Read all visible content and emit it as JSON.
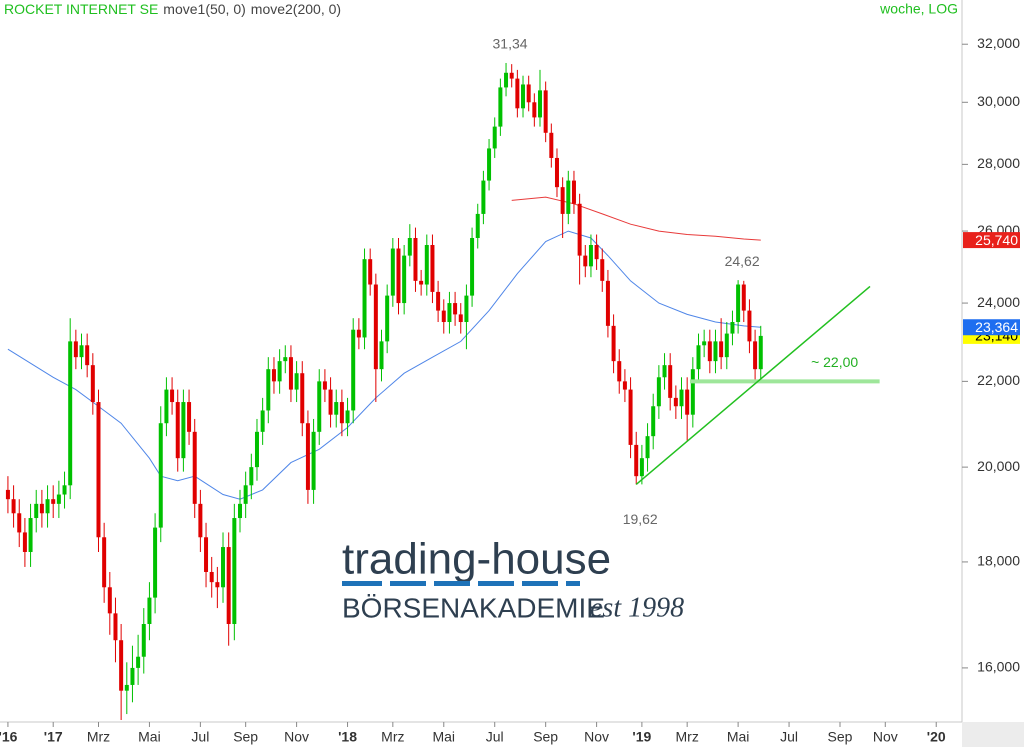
{
  "chart_data": {
    "type": "candlestick",
    "title": "ROCKET INTERNET SE",
    "subtitle": "woche, LOG",
    "log_scale": true,
    "up_color": "#00c000",
    "down_color": "#e00000",
    "xlim": [
      -1.4,
      168.2
    ],
    "xticks": [
      {
        "value": 0,
        "label": "'16"
      },
      {
        "value": 8,
        "label": "'17"
      },
      {
        "value": 16,
        "label": "Mrz"
      },
      {
        "value": 25,
        "label": "Mai"
      },
      {
        "value": 34,
        "label": "Jul"
      },
      {
        "value": 42,
        "label": "Sep"
      },
      {
        "value": 51,
        "label": "Nov"
      },
      {
        "value": 60,
        "label": "'18"
      },
      {
        "value": 68,
        "label": "Mrz"
      },
      {
        "value": 77,
        "label": "Mai"
      },
      {
        "value": 86,
        "label": "Jul"
      },
      {
        "value": 95,
        "label": "Sep"
      },
      {
        "value": 104,
        "label": "Nov"
      },
      {
        "value": 112,
        "label": "'19"
      },
      {
        "value": 120,
        "label": "Mrz"
      },
      {
        "value": 129,
        "label": "Mai"
      },
      {
        "value": 138,
        "label": "Jul"
      },
      {
        "value": 147,
        "label": "Sep"
      },
      {
        "value": 155,
        "label": "Nov"
      },
      {
        "value": 164,
        "label": "'20"
      }
    ],
    "ylim": [
      15.1,
      32.8
    ],
    "yticks": [
      {
        "value": 16,
        "label": "16,000"
      },
      {
        "value": 18,
        "label": "18,000"
      },
      {
        "value": 20,
        "label": "20,000"
      },
      {
        "value": 22,
        "label": "22,000"
      },
      {
        "value": 24,
        "label": "24,000"
      },
      {
        "value": 26,
        "label": "26,000"
      },
      {
        "value": 28,
        "label": "28,000"
      },
      {
        "value": 30,
        "label": "30,000"
      },
      {
        "value": 32,
        "label": "32,000"
      }
    ],
    "x": [
      0,
      1,
      2,
      3,
      4,
      5,
      6,
      7,
      8,
      9,
      10,
      11,
      12,
      13,
      14,
      15,
      16,
      17,
      18,
      19,
      20,
      21,
      22,
      23,
      24,
      25,
      26,
      27,
      28,
      29,
      30,
      31,
      32,
      33,
      34,
      35,
      36,
      37,
      38,
      39,
      40,
      41,
      42,
      43,
      44,
      45,
      46,
      47,
      48,
      49,
      50,
      51,
      52,
      53,
      54,
      55,
      56,
      57,
      58,
      59,
      60,
      61,
      62,
      63,
      64,
      65,
      66,
      67,
      68,
      69,
      70,
      71,
      72,
      73,
      74,
      75,
      76,
      77,
      78,
      79,
      80,
      81,
      82,
      83,
      84,
      85,
      86,
      87,
      88,
      89,
      90,
      91,
      92,
      93,
      94,
      95,
      96,
      97,
      98,
      99,
      100,
      101,
      102,
      103,
      104,
      105,
      106,
      107,
      108,
      109,
      110,
      111,
      112,
      113,
      114,
      115,
      116,
      117,
      118,
      119,
      120,
      121,
      122,
      123,
      124,
      125,
      126,
      127,
      128,
      129,
      130,
      131,
      132,
      133
    ],
    "open": [
      19.5,
      19.3,
      19.0,
      18.6,
      18.2,
      18.9,
      19.2,
      19.0,
      19.3,
      19.2,
      19.4,
      19.6,
      23.0,
      22.6,
      22.9,
      22.4,
      21.5,
      18.5,
      17.5,
      17.0,
      16.5,
      15.6,
      15.7,
      16.0,
      16.2,
      16.8,
      17.3,
      18.7,
      21.0,
      21.8,
      21.5,
      20.2,
      21.5,
      20.8,
      19.2,
      18.5,
      17.8,
      17.6,
      17.5,
      18.3,
      16.8,
      18.9,
      19.2,
      19.6,
      20.0,
      20.8,
      21.3,
      22.3,
      22.0,
      22.5,
      22.6,
      21.8,
      22.2,
      21.0,
      19.5,
      20.8,
      22.0,
      21.8,
      21.2,
      21.5,
      21.0,
      21.3,
      23.3,
      23.1,
      25.2,
      24.5,
      22.3,
      23.0,
      24.2,
      25.5,
      24.0,
      25.3,
      25.8,
      24.6,
      24.5,
      25.6,
      24.3,
      23.8,
      23.5,
      24.0,
      23.7,
      23.5,
      24.2,
      25.8,
      26.5,
      27.5,
      28.5,
      29.2,
      30.5,
      31.0,
      30.8,
      29.8,
      30.6,
      30.0,
      29.5,
      30.4,
      29.0,
      28.2,
      27.3,
      26.5,
      27.5,
      26.8,
      25.3,
      25.0,
      25.6,
      25.2,
      24.6,
      23.4,
      22.5,
      22.0,
      21.8,
      20.5,
      19.8,
      20.2,
      20.7,
      21.4,
      22.1,
      22.4,
      21.6,
      21.4,
      21.8,
      21.2,
      22.3,
      22.9,
      23.0,
      22.5,
      23.0,
      22.6,
      23.2,
      23.5,
      24.5,
      23.8,
      23.0,
      22.3
    ],
    "high": [
      19.8,
      19.6,
      19.3,
      18.9,
      19.2,
      19.5,
      19.5,
      19.6,
      19.6,
      19.7,
      19.9,
      23.6,
      23.3,
      23.2,
      23.2,
      22.7,
      21.8,
      18.8,
      17.8,
      17.3,
      16.8,
      16.1,
      16.4,
      16.6,
      17.1,
      17.6,
      19.0,
      21.4,
      22.1,
      22.1,
      21.8,
      21.8,
      21.8,
      21.1,
      19.5,
      18.8,
      18.1,
      17.9,
      18.6,
      18.6,
      19.2,
      19.5,
      19.9,
      20.3,
      21.1,
      21.6,
      22.6,
      22.6,
      22.8,
      22.9,
      22.9,
      22.5,
      22.5,
      21.3,
      21.1,
      22.3,
      22.3,
      22.1,
      21.8,
      21.8,
      21.6,
      23.6,
      23.6,
      25.5,
      25.5,
      24.8,
      23.3,
      24.5,
      25.8,
      25.8,
      25.6,
      26.2,
      26.1,
      24.9,
      25.9,
      25.9,
      24.6,
      24.1,
      24.3,
      24.3,
      24.0,
      24.5,
      26.1,
      26.8,
      27.8,
      28.8,
      29.5,
      30.8,
      31.34,
      31.3,
      31.1,
      30.9,
      30.9,
      30.3,
      31.1,
      30.7,
      29.3,
      28.5,
      27.6,
      27.8,
      27.8,
      27.1,
      25.6,
      25.9,
      25.9,
      25.5,
      24.9,
      23.7,
      22.8,
      22.3,
      22.1,
      20.8,
      20.5,
      21.0,
      21.7,
      22.4,
      22.7,
      22.7,
      21.9,
      22.1,
      22.1,
      22.6,
      23.2,
      23.3,
      23.3,
      23.3,
      23.6,
      23.5,
      23.8,
      24.62,
      24.6,
      24.1,
      23.3,
      23.4
    ],
    "low": [
      19.0,
      18.7,
      18.3,
      17.9,
      17.9,
      18.6,
      18.7,
      18.7,
      18.9,
      18.9,
      19.1,
      19.3,
      22.3,
      22.3,
      22.1,
      21.2,
      18.2,
      17.2,
      16.6,
      16.1,
      15.1,
      15.2,
      15.4,
      15.7,
      15.9,
      16.5,
      17.0,
      18.4,
      20.7,
      21.2,
      19.9,
      19.9,
      20.5,
      18.9,
      18.2,
      17.5,
      17.3,
      17.1,
      17.2,
      16.4,
      16.5,
      18.6,
      18.9,
      19.3,
      19.7,
      20.5,
      21.0,
      21.7,
      21.7,
      22.2,
      21.5,
      21.5,
      20.7,
      19.2,
      19.2,
      20.5,
      21.5,
      20.9,
      20.9,
      20.7,
      20.7,
      21.0,
      22.8,
      22.8,
      24.2,
      21.5,
      22.0,
      22.7,
      23.9,
      23.7,
      23.7,
      25.0,
      24.3,
      24.2,
      24.2,
      24.0,
      23.5,
      23.2,
      23.2,
      23.4,
      23.2,
      22.8,
      23.9,
      25.5,
      26.2,
      27.2,
      28.2,
      28.9,
      30.2,
      30.5,
      29.5,
      29.5,
      29.7,
      29.2,
      29.2,
      28.7,
      27.9,
      27.0,
      25.8,
      26.2,
      26.5,
      24.5,
      24.7,
      24.7,
      24.9,
      24.3,
      23.1,
      22.2,
      21.7,
      21.5,
      20.2,
      19.62,
      19.62,
      19.9,
      20.4,
      21.1,
      21.8,
      21.3,
      21.1,
      21.1,
      20.6,
      20.9,
      22.0,
      22.6,
      22.2,
      22.2,
      22.3,
      22.3,
      22.9,
      23.2,
      23.5,
      22.7,
      22.0,
      22.0
    ],
    "close": [
      19.3,
      19.0,
      18.6,
      18.2,
      18.9,
      19.2,
      19.0,
      19.3,
      19.2,
      19.4,
      19.6,
      23.0,
      22.6,
      22.9,
      22.4,
      21.5,
      18.5,
      17.5,
      17.0,
      16.5,
      15.6,
      15.7,
      16.0,
      16.2,
      16.8,
      17.3,
      18.7,
      21.0,
      21.8,
      21.5,
      20.2,
      21.5,
      20.8,
      19.2,
      18.5,
      17.8,
      17.6,
      17.5,
      18.3,
      16.8,
      18.9,
      19.2,
      19.6,
      20.0,
      20.8,
      21.3,
      22.3,
      22.0,
      22.5,
      22.6,
      21.8,
      22.2,
      21.0,
      19.5,
      20.8,
      22.0,
      21.8,
      21.2,
      21.5,
      21.0,
      21.3,
      23.3,
      23.1,
      25.2,
      24.5,
      22.3,
      23.0,
      24.2,
      25.5,
      24.0,
      25.3,
      25.8,
      24.6,
      24.5,
      25.6,
      24.3,
      23.8,
      23.5,
      24.0,
      23.7,
      23.5,
      24.2,
      25.8,
      26.5,
      27.5,
      28.5,
      29.2,
      30.5,
      31.0,
      30.8,
      29.8,
      30.6,
      30.0,
      29.5,
      30.4,
      29.0,
      28.2,
      27.3,
      26.5,
      27.5,
      26.8,
      25.3,
      25.0,
      25.6,
      25.2,
      24.6,
      23.4,
      22.5,
      22.0,
      21.8,
      20.5,
      19.8,
      20.2,
      20.7,
      21.4,
      22.1,
      22.4,
      21.6,
      21.4,
      21.8,
      21.2,
      22.3,
      22.9,
      23.0,
      22.5,
      23.0,
      22.6,
      23.2,
      23.5,
      24.5,
      23.8,
      23.0,
      22.3,
      23.14
    ],
    "series": [
      {
        "name": "move1(50, 0)",
        "color": "#4f86e8",
        "x": [
          0,
          8,
          12,
          15,
          20,
          25,
          27,
          30,
          33,
          38,
          41,
          45,
          50,
          55,
          60,
          65,
          70,
          75,
          80,
          85,
          90,
          95,
          99,
          103,
          106,
          110,
          115,
          120,
          125,
          130,
          133
        ],
        "values": [
          22.8,
          22.1,
          21.8,
          21.5,
          21.0,
          20.2,
          19.8,
          19.7,
          19.8,
          19.4,
          19.3,
          19.5,
          20.1,
          20.4,
          20.9,
          21.6,
          22.2,
          22.6,
          23.0,
          23.8,
          24.8,
          25.7,
          26.0,
          25.8,
          25.3,
          24.6,
          24.0,
          23.7,
          23.5,
          23.4,
          23.364
        ]
      },
      {
        "name": "move2(200, 0)",
        "color": "#e83a3a",
        "x": [
          89,
          95,
          100,
          105,
          110,
          115,
          120,
          125,
          130,
          133
        ],
        "values": [
          26.9,
          27.0,
          26.8,
          26.5,
          26.2,
          26.0,
          25.9,
          25.85,
          25.77,
          25.74
        ]
      }
    ],
    "annotations": [
      {
        "label": "31,34",
        "value": 31.34,
        "x": 88,
        "position": "above"
      },
      {
        "label": "19,62",
        "value": 19.62,
        "x": 111,
        "position": "below"
      },
      {
        "label": "24,62",
        "value": 24.62,
        "x": 129,
        "position": "above"
      }
    ],
    "trendline": {
      "color": "#22c020",
      "x": [
        111,
        152.3
      ],
      "values": [
        19.62,
        24.45
      ]
    },
    "support": {
      "color": "#9ee69a",
      "label": "~ 22,00",
      "value": 22.0,
      "x": [
        120.5,
        154
      ]
    },
    "price_tags": [
      {
        "value": 25.74,
        "label": "25,740",
        "color": "#e8211b",
        "text_color": "#ffffff"
      },
      {
        "value": 23.14,
        "label": "23,140",
        "color": "#ffff00",
        "text_color": "#000000"
      },
      {
        "value": 23.364,
        "label": "23,364",
        "color": "#1e6ef0",
        "text_color": "#ffffff"
      }
    ]
  },
  "watermark": {
    "brand": "trading-house",
    "tagline": "BÖRSENAKADEMIE",
    "est": "est 1998"
  }
}
